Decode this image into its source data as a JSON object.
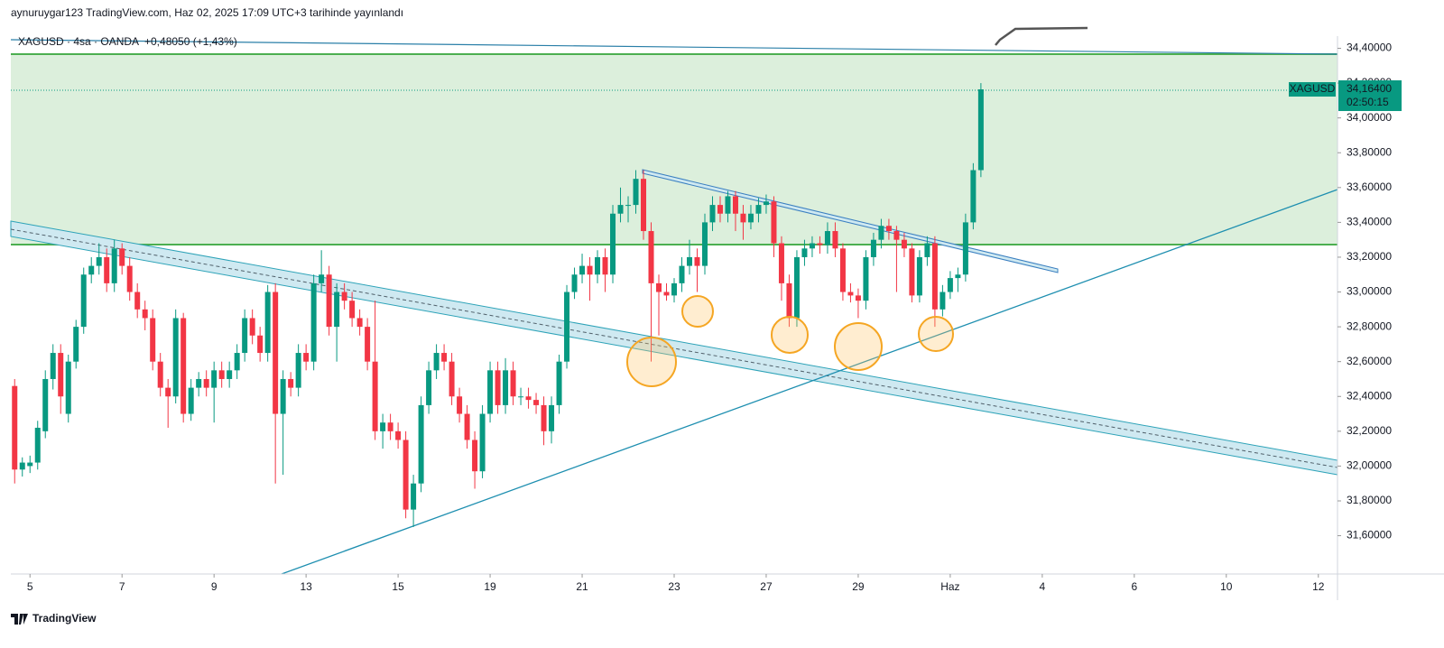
{
  "chart_data": {
    "type": "candlestick",
    "header": "aynuruygar123 TradingView.com, Haz 02, 2025 17:09 UTC+3 tarihinde yayınlandı",
    "symbol_info": "XAGUSD · 4sa · OANDA",
    "change": "+0,48050 (+1,43%)",
    "last_symbol": "XAGUSD",
    "last_price": {
      "value": 34.164,
      "label": "34,16400"
    },
    "countdown": "02:50:15",
    "brand": "TradingView",
    "up_color": "#089981",
    "down_color": "#f23645",
    "xlim": [
      -0.5,
      172.5
    ],
    "xticks": [
      {
        "value": 2,
        "label": "5"
      },
      {
        "value": 14,
        "label": "7"
      },
      {
        "value": 26,
        "label": "9"
      },
      {
        "value": 38,
        "label": "13"
      },
      {
        "value": 50,
        "label": "15"
      },
      {
        "value": 62,
        "label": "19"
      },
      {
        "value": 74,
        "label": "21"
      },
      {
        "value": 86,
        "label": "23"
      },
      {
        "value": 98,
        "label": "27"
      },
      {
        "value": 110,
        "label": "29"
      },
      {
        "value": 122,
        "label": "Haz"
      },
      {
        "value": 134,
        "label": "4"
      },
      {
        "value": 146,
        "label": "6"
      },
      {
        "value": 158,
        "label": "10"
      },
      {
        "value": 170,
        "label": "12"
      }
    ],
    "ylim": [
      31.38,
      34.47
    ],
    "yticks": [
      {
        "value": 31.6,
        "label": "31,60000"
      },
      {
        "value": 31.8,
        "label": "31,80000"
      },
      {
        "value": 32.0,
        "label": "32,00000"
      },
      {
        "value": 32.2,
        "label": "32,20000"
      },
      {
        "value": 32.4,
        "label": "32,40000"
      },
      {
        "value": 32.6,
        "label": "32,60000"
      },
      {
        "value": 32.8,
        "label": "32,80000"
      },
      {
        "value": 33.0,
        "label": "33,00000"
      },
      {
        "value": 33.2,
        "label": "33,20000"
      },
      {
        "value": 33.4,
        "label": "33,40000"
      },
      {
        "value": 33.6,
        "label": "33,60000"
      },
      {
        "value": 33.8,
        "label": "33,80000"
      },
      {
        "value": 34.0,
        "label": "34,00000"
      },
      {
        "value": 34.2,
        "label": "34,20000"
      },
      {
        "value": 34.4,
        "label": "34,40000"
      }
    ],
    "ohlc": [
      [
        32.46,
        32.5,
        31.9,
        31.98
      ],
      [
        31.98,
        32.05,
        31.94,
        32.02
      ],
      [
        32.0,
        32.06,
        31.96,
        32.02
      ],
      [
        32.02,
        32.26,
        31.98,
        32.22
      ],
      [
        32.2,
        32.55,
        32.16,
        32.5
      ],
      [
        32.5,
        32.7,
        32.44,
        32.65
      ],
      [
        32.65,
        32.7,
        32.3,
        32.4
      ],
      [
        32.3,
        32.64,
        32.25,
        32.6
      ],
      [
        32.6,
        32.84,
        32.56,
        32.8
      ],
      [
        32.8,
        33.14,
        32.76,
        33.1
      ],
      [
        33.1,
        33.2,
        33.05,
        33.15
      ],
      [
        33.15,
        33.28,
        33.1,
        33.2
      ],
      [
        33.2,
        33.25,
        33.0,
        33.05
      ],
      [
        33.05,
        33.3,
        33.0,
        33.25
      ],
      [
        33.25,
        33.28,
        33.1,
        33.15
      ],
      [
        33.15,
        33.2,
        32.95,
        33.0
      ],
      [
        33.0,
        33.05,
        32.85,
        32.9
      ],
      [
        32.9,
        32.95,
        32.78,
        32.85
      ],
      [
        32.85,
        32.9,
        32.55,
        32.6
      ],
      [
        32.6,
        32.65,
        32.4,
        32.45
      ],
      [
        32.45,
        32.5,
        32.22,
        32.4
      ],
      [
        32.4,
        32.9,
        32.36,
        32.85
      ],
      [
        32.85,
        32.88,
        32.25,
        32.3
      ],
      [
        32.3,
        32.5,
        32.26,
        32.45
      ],
      [
        32.45,
        32.54,
        32.4,
        32.5
      ],
      [
        32.5,
        32.55,
        32.4,
        32.45
      ],
      [
        32.45,
        32.6,
        32.25,
        32.55
      ],
      [
        32.55,
        32.6,
        32.45,
        32.5
      ],
      [
        32.5,
        32.6,
        32.45,
        32.55
      ],
      [
        32.55,
        32.7,
        32.5,
        32.65
      ],
      [
        32.65,
        32.9,
        32.6,
        32.85
      ],
      [
        32.85,
        32.9,
        32.7,
        32.75
      ],
      [
        32.75,
        32.8,
        32.6,
        32.65
      ],
      [
        32.65,
        33.04,
        32.6,
        33.0
      ],
      [
        33.0,
        33.05,
        31.9,
        32.3
      ],
      [
        32.3,
        32.55,
        31.95,
        32.5
      ],
      [
        32.5,
        32.54,
        32.4,
        32.45
      ],
      [
        32.45,
        32.7,
        32.4,
        32.65
      ],
      [
        32.65,
        32.7,
        32.55,
        32.6
      ],
      [
        32.6,
        33.1,
        32.55,
        33.05
      ],
      [
        33.05,
        33.24,
        33.0,
        33.1
      ],
      [
        33.1,
        33.15,
        32.75,
        32.8
      ],
      [
        32.8,
        33.05,
        32.6,
        33.0
      ],
      [
        33.0,
        33.05,
        32.9,
        32.95
      ],
      [
        32.95,
        33.0,
        32.8,
        32.85
      ],
      [
        32.85,
        32.9,
        32.75,
        32.8
      ],
      [
        32.8,
        32.85,
        32.55,
        32.6
      ],
      [
        32.6,
        32.95,
        32.15,
        32.2
      ],
      [
        32.2,
        32.3,
        32.1,
        32.25
      ],
      [
        32.25,
        32.3,
        32.15,
        32.2
      ],
      [
        32.2,
        32.25,
        32.1,
        32.15
      ],
      [
        32.15,
        32.2,
        31.7,
        31.75
      ],
      [
        31.75,
        31.95,
        31.65,
        31.9
      ],
      [
        31.9,
        32.4,
        31.85,
        32.35
      ],
      [
        32.35,
        32.6,
        32.3,
        32.55
      ],
      [
        32.55,
        32.7,
        32.5,
        32.65
      ],
      [
        32.65,
        32.7,
        32.55,
        32.6
      ],
      [
        32.6,
        32.65,
        32.35,
        32.4
      ],
      [
        32.4,
        32.45,
        32.25,
        32.3
      ],
      [
        32.3,
        32.35,
        32.1,
        32.15
      ],
      [
        32.15,
        32.2,
        31.87,
        31.97
      ],
      [
        31.97,
        32.35,
        31.93,
        32.3
      ],
      [
        32.3,
        32.6,
        32.25,
        32.55
      ],
      [
        32.55,
        32.6,
        32.3,
        32.35
      ],
      [
        32.35,
        32.62,
        32.3,
        32.55
      ],
      [
        32.55,
        32.6,
        32.35,
        32.4
      ],
      [
        32.4,
        32.45,
        32.35,
        32.4
      ],
      [
        32.4,
        32.45,
        32.33,
        32.38
      ],
      [
        32.38,
        32.42,
        32.3,
        32.35
      ],
      [
        32.35,
        32.4,
        32.12,
        32.2
      ],
      [
        32.2,
        32.4,
        32.13,
        32.35
      ],
      [
        32.35,
        32.64,
        32.3,
        32.6
      ],
      [
        32.6,
        33.04,
        32.56,
        33.0
      ],
      [
        33.0,
        33.14,
        32.96,
        33.1
      ],
      [
        33.1,
        33.22,
        33.05,
        33.15
      ],
      [
        33.15,
        33.2,
        32.95,
        33.1
      ],
      [
        33.1,
        33.24,
        33.05,
        33.2
      ],
      [
        33.2,
        33.25,
        33.0,
        33.1
      ],
      [
        33.1,
        33.5,
        33.05,
        33.45
      ],
      [
        33.45,
        33.6,
        33.4,
        33.5
      ],
      [
        33.5,
        33.55,
        33.4,
        33.5
      ],
      [
        33.5,
        33.7,
        33.45,
        33.65
      ],
      [
        33.65,
        33.7,
        33.3,
        33.35
      ],
      [
        33.35,
        33.4,
        32.6,
        33.05
      ],
      [
        33.05,
        33.1,
        32.75,
        33.0
      ],
      [
        33.0,
        33.05,
        32.95,
        32.98
      ],
      [
        32.98,
        33.08,
        32.94,
        33.05
      ],
      [
        33.05,
        33.2,
        33.0,
        33.15
      ],
      [
        33.15,
        33.3,
        33.1,
        33.2
      ],
      [
        33.2,
        33.25,
        33.0,
        33.15
      ],
      [
        33.15,
        33.45,
        33.1,
        33.4
      ],
      [
        33.4,
        33.55,
        33.35,
        33.5
      ],
      [
        33.5,
        33.55,
        33.4,
        33.45
      ],
      [
        33.45,
        33.58,
        33.4,
        33.55
      ],
      [
        33.55,
        33.58,
        33.35,
        33.45
      ],
      [
        33.45,
        33.5,
        33.3,
        33.4
      ],
      [
        33.4,
        33.5,
        33.36,
        33.45
      ],
      [
        33.45,
        33.54,
        33.4,
        33.5
      ],
      [
        33.5,
        33.56,
        33.45,
        33.52
      ],
      [
        33.52,
        33.55,
        33.2,
        33.28
      ],
      [
        33.28,
        33.32,
        32.95,
        33.05
      ],
      [
        33.05,
        33.1,
        32.8,
        32.85
      ],
      [
        32.85,
        33.24,
        32.8,
        33.2
      ],
      [
        33.2,
        33.3,
        33.15,
        33.25
      ],
      [
        33.25,
        33.32,
        33.2,
        33.28
      ],
      [
        33.28,
        33.32,
        33.22,
        33.27
      ],
      [
        33.27,
        33.4,
        33.22,
        33.35
      ],
      [
        33.35,
        33.4,
        33.2,
        33.25
      ],
      [
        33.25,
        33.28,
        32.95,
        33.0
      ],
      [
        33.0,
        33.05,
        32.94,
        32.98
      ],
      [
        32.98,
        33.02,
        32.85,
        32.95
      ],
      [
        32.95,
        33.24,
        32.9,
        33.2
      ],
      [
        33.2,
        33.34,
        33.15,
        33.3
      ],
      [
        33.3,
        33.42,
        33.25,
        33.38
      ],
      [
        33.38,
        33.42,
        33.3,
        33.35
      ],
      [
        33.35,
        33.38,
        33.0,
        33.3
      ],
      [
        33.3,
        33.34,
        33.2,
        33.25
      ],
      [
        33.25,
        33.28,
        32.94,
        32.98
      ],
      [
        32.98,
        33.24,
        32.94,
        33.2
      ],
      [
        33.2,
        33.32,
        33.15,
        33.28
      ],
      [
        33.28,
        33.32,
        32.8,
        32.9
      ],
      [
        32.9,
        33.04,
        32.86,
        33.0
      ],
      [
        33.0,
        33.12,
        32.96,
        33.08
      ],
      [
        33.08,
        33.14,
        33.0,
        33.1
      ],
      [
        33.1,
        33.45,
        33.06,
        33.4
      ],
      [
        33.4,
        33.74,
        33.36,
        33.7
      ],
      [
        33.7,
        34.2,
        33.66,
        34.164
      ]
    ]
  }
}
